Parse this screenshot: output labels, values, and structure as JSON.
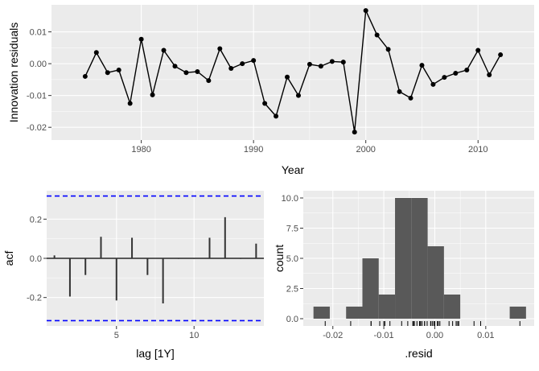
{
  "chart_data": [
    {
      "type": "line",
      "xlabel": "Year",
      "ylabel": "Innovation residuals",
      "xlim": [
        1972,
        2015
      ],
      "ylim": [
        -0.024,
        0.0185
      ],
      "x_ticks": [
        1980,
        1990,
        2000,
        2010
      ],
      "x_tick_labels": [
        "1980",
        "1990",
        "2000",
        "2010"
      ],
      "y_ticks": [
        -0.02,
        -0.01,
        0.0,
        0.01
      ],
      "y_tick_labels": [
        "-0.02",
        "-0.01",
        "0.00",
        "0.01"
      ],
      "grid": true,
      "x": [
        1975,
        1976,
        1977,
        1978,
        1979,
        1980,
        1981,
        1982,
        1983,
        1984,
        1985,
        1986,
        1987,
        1988,
        1989,
        1990,
        1991,
        1992,
        1993,
        1994,
        1995,
        1996,
        1997,
        1998,
        1999,
        2000,
        2001,
        2002,
        2003,
        2004,
        2005,
        2006,
        2007,
        2008,
        2009,
        2010,
        2011,
        2012
      ],
      "y": [
        -0.004,
        0.0035,
        -0.0028,
        -0.002,
        -0.0125,
        0.0077,
        -0.0098,
        0.0042,
        -0.0008,
        -0.0028,
        -0.0025,
        -0.0053,
        0.0047,
        -0.0015,
        0.0,
        0.001,
        -0.0125,
        -0.0165,
        -0.0042,
        -0.01,
        -0.0002,
        -0.0008,
        0.0007,
        0.0005,
        -0.0215,
        0.0167,
        0.009,
        0.0045,
        -0.0088,
        -0.0108,
        -0.0005,
        -0.0065,
        -0.0043,
        -0.003,
        -0.002,
        0.0042,
        -0.0035,
        0.0028
      ]
    },
    {
      "type": "bar",
      "xlabel": "lag [1Y]",
      "ylabel": "acf",
      "xlim": [
        0.5,
        14.5
      ],
      "ylim": [
        -0.345,
        0.345
      ],
      "x_ticks": [
        5,
        10
      ],
      "x_tick_labels": [
        "5",
        "10"
      ],
      "y_ticks": [
        -0.2,
        0.0,
        0.2
      ],
      "y_tick_labels": [
        "-0.2",
        "0.0",
        "0.2"
      ],
      "grid": true,
      "lags": [
        1,
        2,
        3,
        4,
        5,
        6,
        7,
        8,
        9,
        10,
        11,
        12,
        13,
        14
      ],
      "values": [
        0.015,
        -0.195,
        -0.085,
        0.11,
        -0.215,
        0.105,
        -0.085,
        -0.23,
        0.0,
        0.0,
        0.105,
        0.21,
        0.0,
        0.075
      ],
      "confidence_bound": 0.318,
      "bound_color": "#0000ff"
    },
    {
      "type": "histogram",
      "xlabel": ".resid",
      "ylabel": "count",
      "xlim": [
        -0.0258,
        0.0195
      ],
      "ylim": [
        -0.6,
        10.6
      ],
      "x_ticks": [
        -0.02,
        -0.01,
        0.0,
        0.01
      ],
      "x_tick_labels": [
        "-0.02",
        "-0.01",
        "0.00",
        "0.01"
      ],
      "y_ticks": [
        0.0,
        2.5,
        5.0,
        7.5,
        10.0
      ],
      "y_tick_labels": [
        "0.0",
        "2.5",
        "5.0",
        "7.5",
        "10.0"
      ],
      "grid": true,
      "bins": [
        {
          "x0": -0.0238,
          "x1": -0.0206,
          "count": 1
        },
        {
          "x0": -0.0174,
          "x1": -0.0142,
          "count": 1
        },
        {
          "x0": -0.0142,
          "x1": -0.011,
          "count": 5
        },
        {
          "x0": -0.011,
          "x1": -0.0078,
          "count": 2
        },
        {
          "x0": -0.0078,
          "x1": -0.0046,
          "count": 10
        },
        {
          "x0": -0.0046,
          "x1": -0.0014,
          "count": 10
        },
        {
          "x0": -0.0014,
          "x1": 0.0018,
          "count": 6
        },
        {
          "x0": 0.0018,
          "x1": 0.005,
          "count": 2
        },
        {
          "x0": 0.0147,
          "x1": 0.0179,
          "count": 1
        }
      ],
      "rug": true
    }
  ],
  "colors": {
    "panel_bg": "#ebebeb",
    "grid": "#ffffff",
    "line": "#000000",
    "bar": "#595959",
    "acf_bar": "#333333",
    "bound": "#0000ff"
  }
}
